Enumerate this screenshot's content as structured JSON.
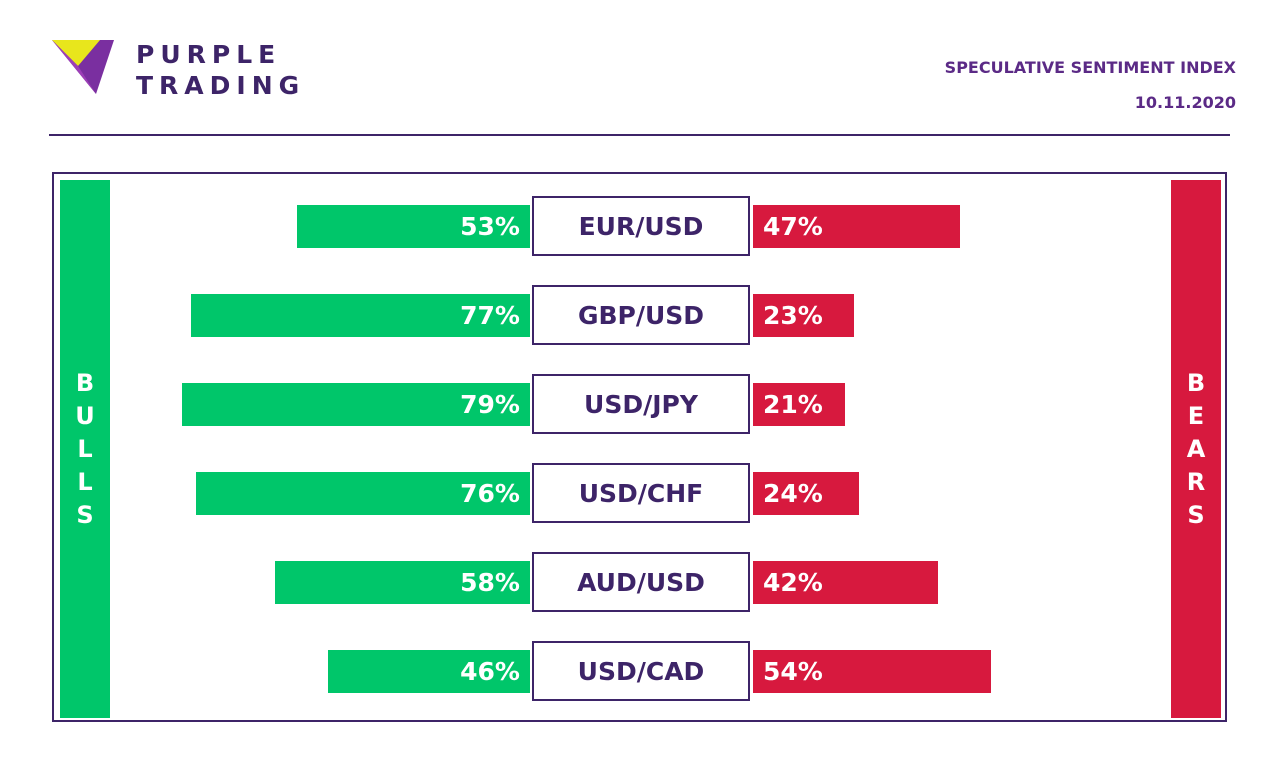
{
  "header": {
    "brand_line1": "PURPLE",
    "brand_line2": "TRADING",
    "report_title": "SPECULATIVE SENTIMENT INDEX",
    "report_date": "10.11.2020"
  },
  "colors": {
    "bull": "#00c66a",
    "bear": "#d7193e",
    "brand_purple": "#3d2468",
    "logo_yellow": "#e8e61c",
    "logo_purple": "#7a2fa0"
  },
  "labels": {
    "bulls": "BULLS",
    "bears": "BEARS"
  },
  "chart_data": {
    "type": "bar",
    "categories": [
      "EUR/USD",
      "GBP/USD",
      "USD/JPY",
      "USD/CHF",
      "AUD/USD",
      "USD/CAD"
    ],
    "series": [
      {
        "name": "BULLS",
        "values": [
          53,
          77,
          79,
          76,
          58,
          46
        ]
      },
      {
        "name": "BEARS",
        "values": [
          47,
          23,
          21,
          24,
          42,
          54
        ]
      }
    ],
    "data_labels": {
      "bulls": [
        "53%",
        "77%",
        "79%",
        "76%",
        "58%",
        "46%"
      ],
      "bears": [
        "47%",
        "23%",
        "21%",
        "24%",
        "42%",
        "54%"
      ]
    },
    "title": "SPECULATIVE SENTIMENT INDEX",
    "xlabel": "",
    "ylabel": "",
    "ylim": [
      0,
      100
    ],
    "grid": false
  }
}
